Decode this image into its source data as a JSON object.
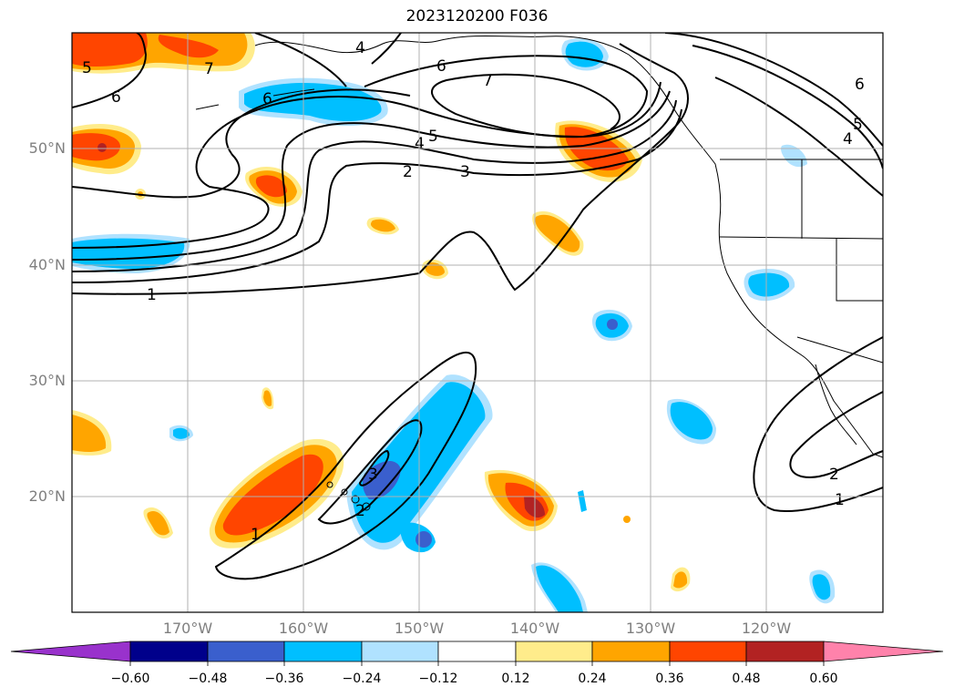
{
  "title": "2023120200 F036",
  "map": {
    "lat_labels": [
      "50°N",
      "40°N",
      "30°N",
      "20°N"
    ],
    "lon_labels": [
      "170°W",
      "160°W",
      "150°W",
      "140°W",
      "130°W",
      "120°W"
    ],
    "contour_labels": [
      "1",
      "2",
      "3",
      "4",
      "5",
      "6",
      "7"
    ]
  },
  "colorbar": {
    "ticks": [
      "−0.60",
      "−0.48",
      "−0.36",
      "−0.24",
      "−0.12",
      "0.12",
      "0.24",
      "0.36",
      "0.48",
      "0.60"
    ],
    "colors": [
      "#9932cc",
      "#00008b",
      "#3a5fcd",
      "#00bfff",
      "#b0e2ff",
      "#ffffff",
      "#ffec8b",
      "#ffa500",
      "#ff4500",
      "#b22222",
      "#ff82ab"
    ]
  }
}
